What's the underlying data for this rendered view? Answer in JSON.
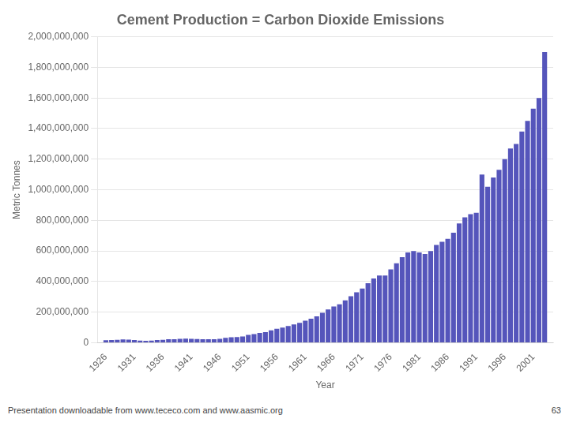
{
  "chart_data": {
    "type": "bar",
    "title": "Cement Production = Carbon Dioxide Emissions",
    "xlabel": "Year",
    "ylabel": "Metric Tonnes",
    "annotations": [
      "Presentation downloadable from www.tececo.com and www.aasmic.org",
      "63"
    ],
    "x": [
      1926,
      1927,
      1928,
      1929,
      1930,
      1931,
      1932,
      1933,
      1934,
      1935,
      1936,
      1937,
      1938,
      1939,
      1940,
      1941,
      1942,
      1943,
      1944,
      1945,
      1946,
      1947,
      1948,
      1949,
      1950,
      1951,
      1952,
      1953,
      1954,
      1955,
      1956,
      1957,
      1958,
      1959,
      1960,
      1961,
      1962,
      1963,
      1964,
      1965,
      1966,
      1967,
      1968,
      1969,
      1970,
      1971,
      1972,
      1973,
      1974,
      1975,
      1976,
      1977,
      1978,
      1979,
      1980,
      1981,
      1982,
      1983,
      1984,
      1985,
      1986,
      1987,
      1988,
      1989,
      1990,
      1991,
      1992,
      1993,
      1994,
      1995,
      1996,
      1997,
      1998,
      1999,
      2000,
      2001,
      2002,
      2003
    ],
    "values": [
      17000000,
      18000000,
      20000000,
      22000000,
      21000000,
      18000000,
      14000000,
      13000000,
      15000000,
      18000000,
      20000000,
      24000000,
      24000000,
      26000000,
      27000000,
      26000000,
      25000000,
      24000000,
      24000000,
      23000000,
      26000000,
      32000000,
      36000000,
      38000000,
      42000000,
      52000000,
      57000000,
      65000000,
      70000000,
      82000000,
      92000000,
      99000000,
      110000000,
      120000000,
      130000000,
      145000000,
      158000000,
      173000000,
      196000000,
      218000000,
      238000000,
      252000000,
      277000000,
      305000000,
      330000000,
      355000000,
      390000000,
      420000000,
      440000000,
      440000000,
      480000000,
      520000000,
      560000000,
      590000000,
      600000000,
      590000000,
      580000000,
      600000000,
      640000000,
      660000000,
      680000000,
      720000000,
      780000000,
      820000000,
      840000000,
      850000000,
      1100000000,
      1020000000,
      1080000000,
      1130000000,
      1200000000,
      1270000000,
      1300000000,
      1380000000,
      1450000000,
      1530000000,
      1600000000,
      1900000000
    ],
    "color": "#5555bb",
    "xlim": [
      1924.5,
      2004.5
    ],
    "xticks": [
      1926,
      1931,
      1936,
      1941,
      1946,
      1951,
      1956,
      1961,
      1966,
      1971,
      1976,
      1981,
      1986,
      1991,
      1996,
      2001
    ],
    "ylim": [
      0,
      2000000000
    ],
    "yticks": [
      0,
      {
        "value": 200000000,
        "label": "200,000,000"
      },
      {
        "value": 400000000,
        "label": "400,000,000"
      },
      {
        "value": 600000000,
        "label": "600,000,000"
      },
      {
        "value": 800000000,
        "label": "800,000,000"
      },
      {
        "value": 1000000000,
        "label": "1,000,000,000"
      },
      {
        "value": 1200000000,
        "label": "1,200,000,000"
      },
      {
        "value": 1400000000,
        "label": "1,400,000,000"
      },
      {
        "value": 1600000000,
        "label": "1,600,000,000"
      },
      {
        "value": 1800000000,
        "label": "1,800,000,000"
      },
      {
        "value": 2000000000,
        "label": "2,000,000,000"
      }
    ],
    "grid": true
  }
}
